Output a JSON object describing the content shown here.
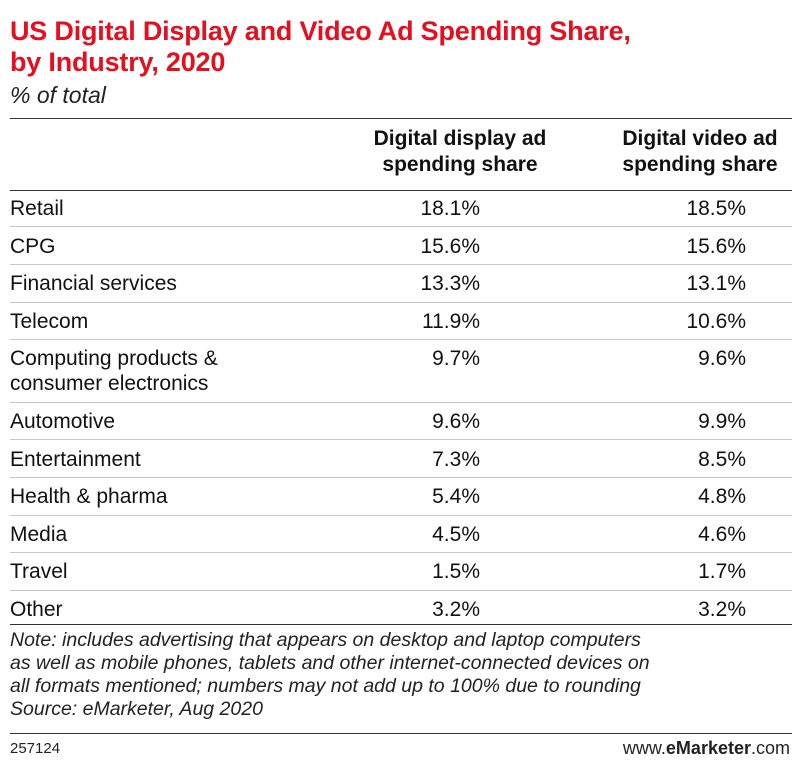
{
  "chart_data": {
    "type": "table",
    "title": "US Digital Display and Video Ad Spending Share, by Industry, 2020",
    "title_lines": [
      "US Digital Display and Video Ad Spending Share,",
      "by Industry, 2020"
    ],
    "subtitle": "% of total",
    "columns": [
      {
        "lines": [
          "Digital display ad",
          "spending share"
        ]
      },
      {
        "lines": [
          "Digital video ad",
          "spending share"
        ]
      }
    ],
    "rows": [
      {
        "lines": [
          "Retail"
        ],
        "display": "18.1%",
        "video": "18.5%"
      },
      {
        "lines": [
          "CPG"
        ],
        "display": "15.6%",
        "video": "15.6%"
      },
      {
        "lines": [
          "Financial services"
        ],
        "display": "13.3%",
        "video": "13.1%"
      },
      {
        "lines": [
          "Telecom"
        ],
        "display": "11.9%",
        "video": "10.6%"
      },
      {
        "lines": [
          "Computing products &",
          "consumer electronics"
        ],
        "display": "9.7%",
        "video": "9.6%"
      },
      {
        "lines": [
          "Automotive"
        ],
        "display": "9.6%",
        "video": "9.9%"
      },
      {
        "lines": [
          "Entertainment"
        ],
        "display": "7.3%",
        "video": "8.5%"
      },
      {
        "lines": [
          "Health & pharma"
        ],
        "display": "5.4%",
        "video": "4.8%"
      },
      {
        "lines": [
          "Media"
        ],
        "display": "4.5%",
        "video": "4.6%"
      },
      {
        "lines": [
          "Travel"
        ],
        "display": "1.5%",
        "video": "1.7%"
      },
      {
        "lines": [
          "Other"
        ],
        "display": "3.2%",
        "video": "3.2%"
      }
    ],
    "note_lines": [
      "Note: includes advertising that appears on desktop and laptop computers",
      "as well as mobile phones, tablets and other internet-connected devices on",
      "all formats mentioned; numbers may not add up to 100% due to rounding",
      "Source: eMarketer, Aug 2020"
    ]
  },
  "footer": {
    "chart_id": "257124",
    "brand_prefix": "www.",
    "brand_name": "eMarketer",
    "brand_suffix": ".com"
  },
  "colors": {
    "title": "#e3101f",
    "rule": "#c7c7c7"
  }
}
